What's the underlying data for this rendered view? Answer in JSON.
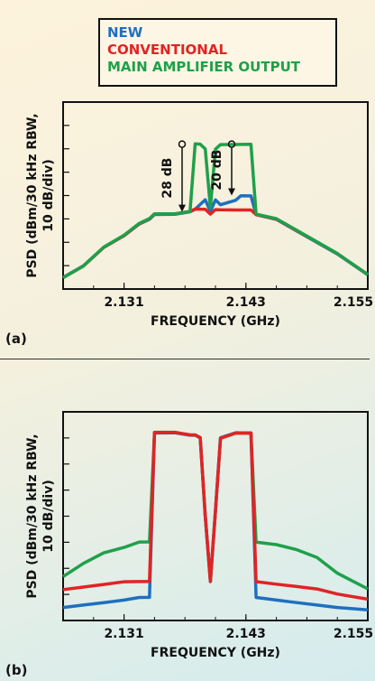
{
  "legend": {
    "new": "NEW",
    "conventional": "CONVENTIONAL",
    "main": "MAIN AMPLIFIER OUTPUT"
  },
  "colors": {
    "new": "#1f6fc0",
    "conventional": "#e02424",
    "main": "#1fa04a"
  },
  "panels": [
    {
      "label": "(a)",
      "ylabel_line1": "PSD (dBm/30 kHz RBW,",
      "ylabel_line2": "10 dB/div)",
      "xlabel": "FREQUENCY (GHz)",
      "xticks": [
        "2.131",
        "2.143",
        "2.155"
      ],
      "annotations": [
        "28 dB",
        "20 dB"
      ]
    },
    {
      "label": "(b)",
      "ylabel_line1": "PSD (dBm/30 kHz RBW,",
      "ylabel_line2": "10 dB/div)",
      "xlabel": "FREQUENCY (GHz)",
      "xticks": [
        "2.131",
        "2.143",
        "2.155"
      ],
      "annotations": []
    }
  ],
  "chart_data": [
    {
      "type": "line",
      "xlabel": "FREQUENCY (GHz)",
      "ylabel": "PSD (dBm/30 kHz RBW, 10 dB/div)",
      "xlim": [
        2.125,
        2.155
      ],
      "ylim": [
        0,
        8
      ],
      "xticks": [
        2.131,
        2.143,
        2.155
      ],
      "annotations": [
        "28 dB",
        "20 dB"
      ],
      "x": [
        2.125,
        2.127,
        2.129,
        2.131,
        2.1325,
        2.1335,
        2.134,
        2.136,
        2.1375,
        2.138,
        2.1385,
        2.139,
        2.1395,
        2.14,
        2.1405,
        2.142,
        2.1425,
        2.1435,
        2.144,
        2.146,
        2.148,
        2.15,
        2.152,
        2.155
      ],
      "series": [
        {
          "name": "NEW",
          "values": [
            0.5,
            1.0,
            1.8,
            2.3,
            2.8,
            3.0,
            3.2,
            3.2,
            3.3,
            3.4,
            3.6,
            3.8,
            3.3,
            3.8,
            3.6,
            3.8,
            4.0,
            4.0,
            3.2,
            3.0,
            2.5,
            2.0,
            1.5,
            0.6
          ]
        },
        {
          "name": "CONVENTIONAL",
          "values": [
            0.5,
            1.0,
            1.8,
            2.3,
            2.8,
            3.0,
            3.2,
            3.2,
            3.3,
            3.4,
            3.4,
            3.4,
            3.2,
            3.4,
            3.4,
            3.4,
            3.4,
            3.4,
            3.2,
            3.0,
            2.5,
            2.0,
            1.5,
            0.6
          ]
        },
        {
          "name": "MAIN AMPLIFIER OUTPUT",
          "values": [
            0.5,
            1.0,
            1.8,
            2.3,
            2.8,
            3.0,
            3.2,
            3.2,
            3.3,
            6.2,
            6.2,
            6.0,
            3.5,
            6.0,
            6.2,
            6.2,
            6.2,
            6.2,
            3.2,
            3.0,
            2.5,
            2.0,
            1.5,
            0.6
          ]
        }
      ]
    },
    {
      "type": "line",
      "xlabel": "FREQUENCY (GHz)",
      "ylabel": "PSD (dBm/30 kHz RBW, 10 dB/div)",
      "xlim": [
        2.125,
        2.155
      ],
      "ylim": [
        0,
        8
      ],
      "xticks": [
        2.131,
        2.143,
        2.155
      ],
      "x": [
        2.125,
        2.127,
        2.129,
        2.131,
        2.1325,
        2.1335,
        2.134,
        2.136,
        2.1375,
        2.138,
        2.1385,
        2.139,
        2.1395,
        2.14,
        2.1405,
        2.142,
        2.1425,
        2.1435,
        2.144,
        2.146,
        2.148,
        2.15,
        2.152,
        2.155
      ],
      "series": [
        {
          "name": "NEW",
          "values": [
            0.5,
            0.6,
            0.7,
            0.8,
            0.9,
            0.9,
            7.2,
            7.2,
            7.1,
            7.1,
            7.0,
            4.0,
            1.5,
            4.2,
            7.0,
            7.2,
            7.2,
            7.2,
            0.9,
            0.8,
            0.7,
            0.6,
            0.5,
            0.4
          ]
        },
        {
          "name": "CONVENTIONAL",
          "values": [
            1.2,
            1.3,
            1.4,
            1.5,
            1.5,
            1.5,
            7.2,
            7.2,
            7.1,
            7.1,
            7.0,
            4.0,
            1.5,
            4.2,
            7.0,
            7.2,
            7.2,
            7.2,
            1.5,
            1.4,
            1.3,
            1.2,
            1.0,
            0.8
          ]
        },
        {
          "name": "MAIN AMPLIFIER OUTPUT",
          "values": [
            1.7,
            2.2,
            2.6,
            2.8,
            3.0,
            3.0,
            7.2,
            7.2,
            7.1,
            7.1,
            7.0,
            4.0,
            1.5,
            4.2,
            7.0,
            7.2,
            7.2,
            7.2,
            3.0,
            2.9,
            2.7,
            2.4,
            1.8,
            1.2
          ]
        }
      ]
    }
  ]
}
